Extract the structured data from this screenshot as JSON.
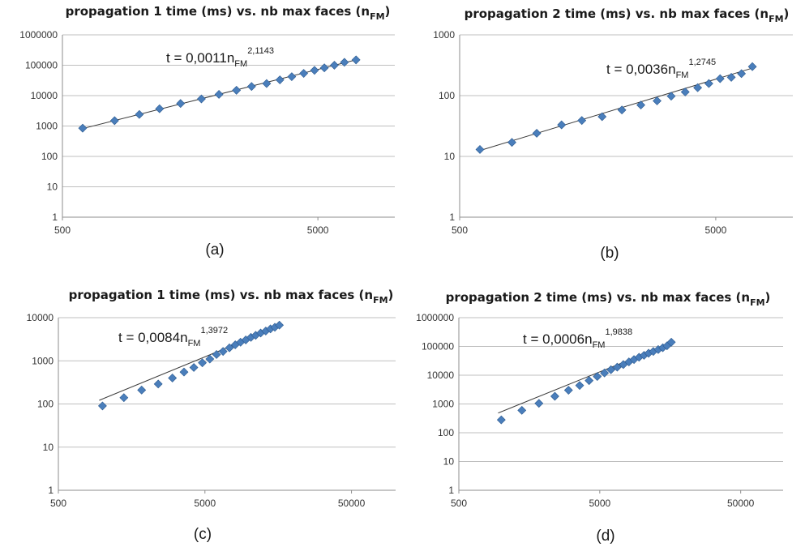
{
  "chart_data": [
    {
      "type": "scatter",
      "panel_label": "(a)",
      "title": {
        "main": "propagation 1 time (ms)  vs. nb max faces  (n",
        "sub": "FM",
        "close": ")"
      },
      "equation": {
        "prefix": "t = 0,0011n",
        "sub": "FM",
        "sup": "2,1143"
      },
      "xscale": "log",
      "yscale": "log",
      "xlim": [
        500,
        10000
      ],
      "ylim": [
        1,
        1000000
      ],
      "x_tick_labels": [
        "500",
        "5000"
      ],
      "y_tick_labels": [
        "1",
        "10",
        "100",
        "1000",
        "10000",
        "100000",
        "1000000"
      ],
      "grid": "horizontal",
      "trendline": {
        "coef": 0.0011,
        "exp": 2.1143,
        "x_range": [
          600,
          7200
        ]
      },
      "x": [
        600,
        800,
        1000,
        1200,
        1450,
        1750,
        2050,
        2400,
        2750,
        3150,
        3550,
        3950,
        4400,
        4850,
        5300,
        5800,
        6350,
        7050
      ],
      "y": [
        850,
        1500,
        2400,
        3700,
        5500,
        7800,
        11000,
        15000,
        20000,
        25000,
        33000,
        42000,
        54000,
        68000,
        82000,
        100000,
        125000,
        150000
      ]
    },
    {
      "type": "scatter",
      "panel_label": "(b)",
      "title": {
        "main": "propagation 2 time (ms)  vs. nb max faces  (n",
        "sub": "FM",
        "close": ")"
      },
      "equation": {
        "prefix": "t = 0,0036n",
        "sub": "FM",
        "sup": "1,2745"
      },
      "xscale": "log",
      "yscale": "log",
      "xlim": [
        500,
        10000
      ],
      "ylim": [
        1,
        1000
      ],
      "x_tick_labels": [
        "500",
        "5000"
      ],
      "y_tick_labels": [
        "1",
        "10",
        "100",
        "1000"
      ],
      "grid": "horizontal",
      "trendline": {
        "coef": 0.0036,
        "exp": 1.2745,
        "x_range": [
          600,
          7200
        ]
      },
      "x": [
        600,
        800,
        1000,
        1250,
        1500,
        1800,
        2150,
        2550,
        2950,
        3350,
        3800,
        4250,
        4700,
        5200,
        5750,
        6300,
        6950
      ],
      "y": [
        13,
        17,
        24,
        33,
        39,
        45,
        58,
        70,
        82,
        98,
        115,
        135,
        158,
        190,
        200,
        230,
        300
      ]
    },
    {
      "type": "scatter",
      "panel_label": "(c)",
      "title": {
        "main": "propagation 1 time (ms)  vs. nb max faces  (n",
        "sub": "FM",
        "close": ")"
      },
      "equation": {
        "prefix": "t = 0,0084n",
        "sub": "FM",
        "sup": "1,3972"
      },
      "xscale": "log",
      "yscale": "log",
      "xlim": [
        500,
        100000
      ],
      "ylim": [
        1,
        10000
      ],
      "x_tick_labels": [
        "500",
        "5000",
        "50000"
      ],
      "y_tick_labels": [
        "1",
        "10",
        "100",
        "1000",
        "10000"
      ],
      "grid": "horizontal",
      "trendline": {
        "coef": 0.0084,
        "exp": 1.3972,
        "x_range": [
          950,
          16500
        ]
      },
      "x": [
        1000,
        1400,
        1850,
        2400,
        3000,
        3600,
        4200,
        4800,
        5400,
        6000,
        6650,
        7350,
        8050,
        8750,
        9500,
        10300,
        11100,
        12000,
        13000,
        14000,
        15000,
        16100
      ],
      "y": [
        90,
        140,
        210,
        290,
        400,
        550,
        700,
        900,
        1100,
        1400,
        1650,
        2000,
        2350,
        2700,
        3050,
        3500,
        3900,
        4400,
        4900,
        5500,
        6000,
        6700
      ]
    },
    {
      "type": "scatter",
      "panel_label": "(d)",
      "title": {
        "main": "propagation 2 time (ms)  vs. nb max faces  (n",
        "sub": "FM",
        "close": ")"
      },
      "equation": {
        "prefix": "t = 0,0006n",
        "sub": "FM",
        "sup": "1,9838"
      },
      "xscale": "log",
      "yscale": "log",
      "xlim": [
        500,
        100000
      ],
      "ylim": [
        1,
        1000000
      ],
      "x_tick_labels": [
        "500",
        "5000",
        "50000"
      ],
      "y_tick_labels": [
        "1",
        "10",
        "100",
        "1000",
        "10000",
        "100000",
        "1000000"
      ],
      "grid": "horizontal",
      "trendline": {
        "coef": 0.0006,
        "exp": 1.9838,
        "x_range": [
          950,
          16500
        ]
      },
      "x": [
        1000,
        1400,
        1850,
        2400,
        3000,
        3600,
        4200,
        4800,
        5400,
        6000,
        6650,
        7350,
        8050,
        8750,
        9500,
        10300,
        11100,
        12000,
        13000,
        14000,
        15000,
        16100
      ],
      "y": [
        280,
        600,
        1050,
        1850,
        3000,
        4400,
        6500,
        9000,
        12000,
        15500,
        19000,
        23500,
        29000,
        35000,
        42000,
        49000,
        58000,
        67000,
        78000,
        90000,
        105000,
        140000
      ]
    }
  ]
}
